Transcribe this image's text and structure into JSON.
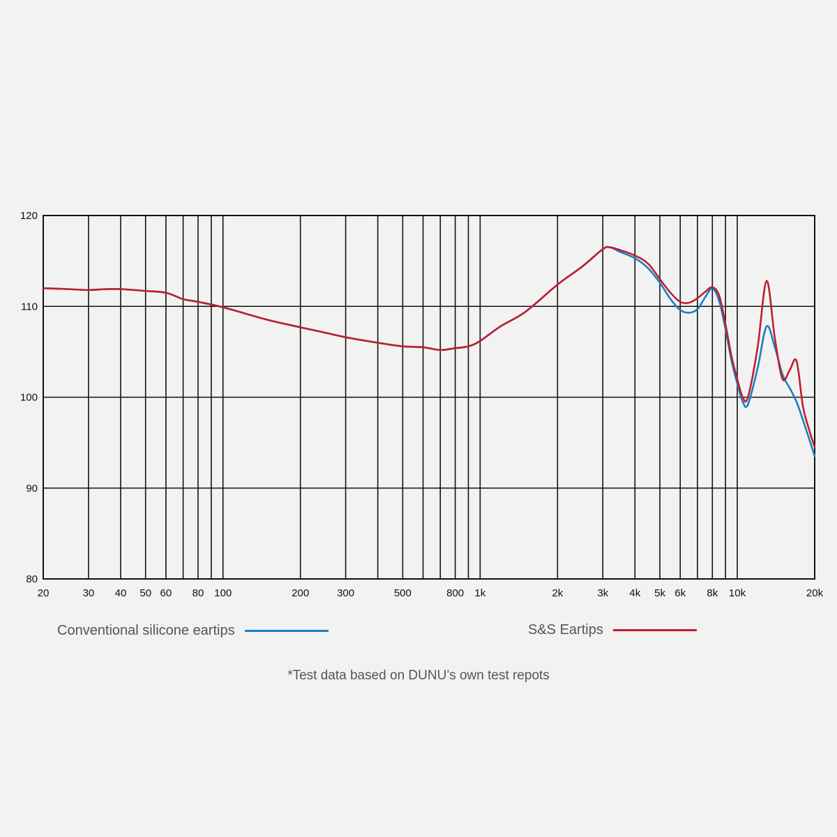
{
  "chart_data": {
    "type": "line",
    "title": "",
    "xlabel": "",
    "ylabel": "",
    "x_scale": "log",
    "xlim": [
      20,
      20000
    ],
    "ylim": [
      80,
      120
    ],
    "grid": true,
    "y_ticks": [
      80,
      90,
      100,
      110,
      120
    ],
    "y_tick_labels": [
      "80",
      "90",
      "100",
      "110",
      "120"
    ],
    "x_grid_values": [
      20,
      30,
      40,
      50,
      60,
      70,
      80,
      90,
      100,
      200,
      300,
      400,
      500,
      600,
      700,
      800,
      900,
      1000,
      2000,
      3000,
      4000,
      5000,
      6000,
      7000,
      8000,
      9000,
      10000,
      20000
    ],
    "x_ticks": [
      20,
      30,
      40,
      50,
      60,
      80,
      100,
      200,
      300,
      500,
      800,
      1000,
      2000,
      3000,
      4000,
      5000,
      6000,
      8000,
      10000,
      20000
    ],
    "x_tick_labels": [
      "20",
      "30",
      "40",
      "50",
      "60",
      "80",
      "100",
      "200",
      "300",
      "500",
      "800",
      "1k",
      "2k",
      "3k",
      "4k",
      "5k",
      "6k",
      "8k",
      "10k",
      "20k"
    ],
    "legend_position": "bottom",
    "series": [
      {
        "name": "Conventional silicone eartips",
        "color": "#1b7fc4",
        "x": [
          20,
          25,
          30,
          35,
          40,
          50,
          60,
          70,
          80,
          100,
          150,
          200,
          250,
          300,
          400,
          500,
          600,
          700,
          800,
          900,
          1000,
          1200,
          1500,
          2000,
          2500,
          3000,
          3200,
          3500,
          4000,
          4500,
          5000,
          5500,
          6000,
          6500,
          7000,
          7500,
          8000,
          8500,
          9000,
          9500,
          10000,
          10500,
          11000,
          12000,
          13000,
          14000,
          15000,
          16000,
          17000,
          18000,
          19000,
          20000
        ],
        "y": [
          112,
          111.9,
          111.8,
          111.9,
          111.9,
          111.7,
          111.5,
          110.8,
          110.5,
          109.9,
          108.5,
          107.7,
          107.1,
          106.6,
          106.0,
          105.6,
          105.5,
          105.2,
          105.4,
          105.6,
          106.2,
          107.8,
          109.4,
          112.4,
          114.4,
          116.3,
          116.5,
          116.0,
          115.3,
          114.2,
          112.6,
          110.8,
          109.6,
          109.3,
          109.7,
          111.0,
          112.0,
          110.6,
          107.5,
          104.0,
          101.5,
          99.5,
          99.2,
          103.2,
          107.8,
          105.5,
          102.5,
          101.0,
          99.5,
          97.5,
          95.5,
          93.5
        ]
      },
      {
        "name": "S&S Eartips",
        "color": "#bf1e2e",
        "x": [
          20,
          25,
          30,
          35,
          40,
          50,
          60,
          70,
          80,
          100,
          150,
          200,
          250,
          300,
          400,
          500,
          600,
          700,
          800,
          900,
          1000,
          1200,
          1500,
          2000,
          2500,
          3000,
          3200,
          3500,
          4000,
          4500,
          5000,
          5500,
          6000,
          6500,
          7000,
          7500,
          8000,
          8500,
          9000,
          9500,
          10000,
          10500,
          11000,
          12000,
          13000,
          14000,
          15000,
          16000,
          17000,
          18000,
          19000,
          20000
        ],
        "y": [
          112,
          111.9,
          111.8,
          111.9,
          111.9,
          111.7,
          111.5,
          110.8,
          110.5,
          109.9,
          108.5,
          107.7,
          107.1,
          106.6,
          106.0,
          105.6,
          105.5,
          105.2,
          105.4,
          105.6,
          106.2,
          107.8,
          109.4,
          112.4,
          114.4,
          116.3,
          116.5,
          116.2,
          115.6,
          114.7,
          113.0,
          111.5,
          110.5,
          110.4,
          110.9,
          111.6,
          112.1,
          111.2,
          108.0,
          104.5,
          102.0,
          100.0,
          100.0,
          105.5,
          112.8,
          106.5,
          102.0,
          103.0,
          104.0,
          99.0,
          96.5,
          94.5
        ]
      }
    ]
  },
  "legend": {
    "item1_label": "Conventional silicone eartips",
    "item2_label": "S&S Eartips"
  },
  "note": "*Test data based on DUNU’s own test repots"
}
